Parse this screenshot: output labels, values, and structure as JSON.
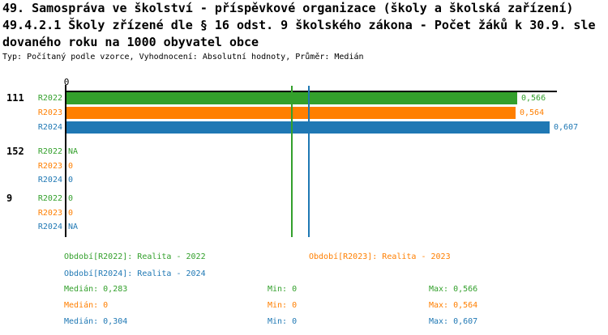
{
  "chart_data": {
    "type": "bar",
    "orientation": "horizontal",
    "title_lines": [
      "49. Samospráva ve školství - příspěvkové organizace (školy a školská zařízení)",
      "49.4.2.1 Školy zřízené dle § 16 odst. 9 školského zákona - Počet žáků k 30.9. sle",
      "dovaného roku na 1000 obyvatel obce"
    ],
    "subtitle": "Typ: Počítaný podle vzorce, Vyhodnocení: Absolutní hodnoty, Průměr: Medián",
    "axis": {
      "x_tick_labels": [
        "0"
      ],
      "xlim": [
        0,
        0.615
      ],
      "decimal_separator": ","
    },
    "series": [
      {
        "name": "R2022",
        "color": "#33A02C",
        "legend_label": "Období[R2022]: Realita - 2022",
        "median": 0.283,
        "min": 0,
        "max": 0.566,
        "median_label": "Medián: 0,283",
        "min_label": "Min: 0",
        "max_label": "Max: 0,566"
      },
      {
        "name": "R2023",
        "color": "#FF7F00",
        "legend_label": "Období[R2023]: Realita - 2023",
        "median": 0,
        "min": 0,
        "max": 0.564,
        "median_label": "Medián: 0",
        "min_label": "Min: 0",
        "max_label": "Max: 0,564"
      },
      {
        "name": "R2024",
        "color": "#1F78B4",
        "legend_label": "Období[R2024]: Realita - 2024",
        "median": 0.304,
        "min": 0,
        "max": 0.607,
        "median_label": "Medián: 0,304",
        "min_label": "Min: 0",
        "max_label": "Max: 0,607"
      }
    ],
    "groups": [
      {
        "id": "111",
        "bars": [
          {
            "series": "R2022",
            "value": 0.566,
            "value_label": "0,566"
          },
          {
            "series": "R2023",
            "value": 0.564,
            "value_label": "0,564"
          },
          {
            "series": "R2024",
            "value": 0.607,
            "value_label": "0,607"
          }
        ]
      },
      {
        "id": "152",
        "bars": [
          {
            "series": "R2022",
            "value": null,
            "value_label": "NA"
          },
          {
            "series": "R2023",
            "value": 0,
            "value_label": "0"
          },
          {
            "series": "R2024",
            "value": 0,
            "value_label": "0"
          }
        ]
      },
      {
        "id": "9",
        "bars": [
          {
            "series": "R2022",
            "value": 0,
            "value_label": "0"
          },
          {
            "series": "R2023",
            "value": 0,
            "value_label": "0"
          },
          {
            "series": "R2024",
            "value": null,
            "value_label": "NA"
          }
        ]
      }
    ],
    "median_lines": [
      {
        "series": "R2022",
        "value": 0.283
      },
      {
        "series": "R2024",
        "value": 0.304
      }
    ]
  }
}
